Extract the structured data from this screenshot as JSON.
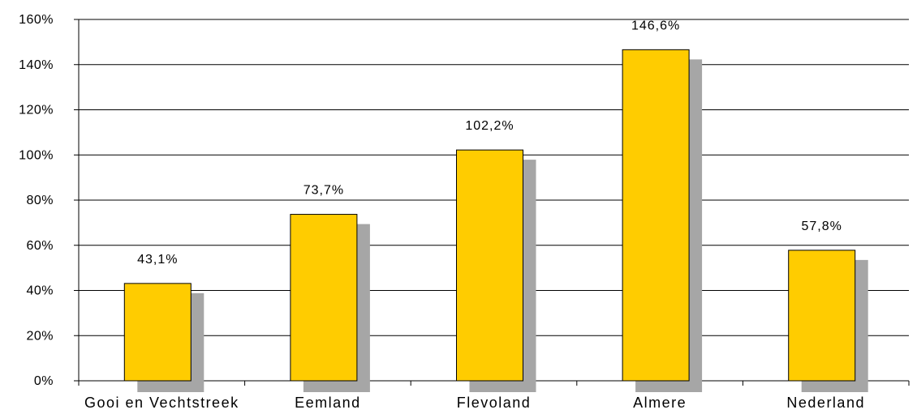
{
  "chart_data": {
    "type": "bar",
    "categories": [
      "Gooi en Vechtstreek",
      "Eemland",
      "Flevoland",
      "Almere",
      "Nederland"
    ],
    "values": [
      43.1,
      73.7,
      102.2,
      146.6,
      57.8
    ],
    "data_labels": [
      "43,1%",
      "73,7%",
      "102,2%",
      "146,6%",
      "57,8%"
    ],
    "y_ticks": [
      "0%",
      "20%",
      "40%",
      "60%",
      "80%",
      "100%",
      "120%",
      "140%",
      "160%"
    ],
    "ylim": [
      0,
      160
    ],
    "grid": true,
    "title": "",
    "xlabel": "",
    "ylabel": "",
    "colors": {
      "bar": "#FFCC00",
      "bar_border": "#000000",
      "shadow": "#A6A6A6",
      "grid": "#000000"
    }
  }
}
